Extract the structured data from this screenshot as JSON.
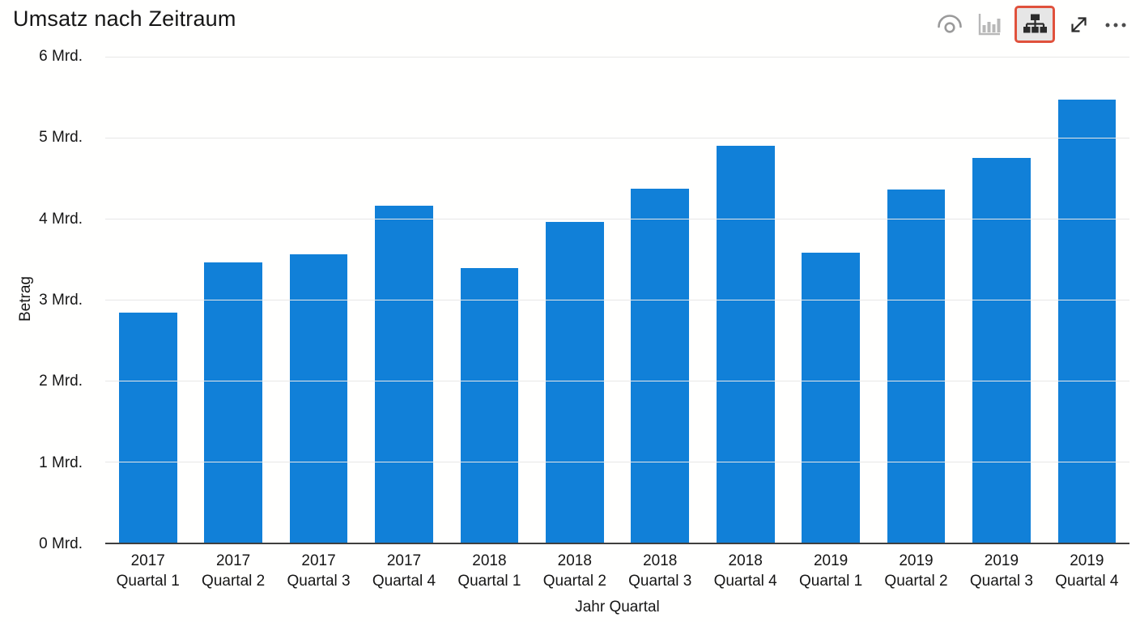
{
  "header": {
    "title": "Umsatz nach Zeitraum",
    "toolbar": {
      "icons": [
        {
          "name": "eye-icon",
          "active": false
        },
        {
          "name": "bar-chart-icon",
          "active": false,
          "disabled": true
        },
        {
          "name": "hierarchy-expand-icon",
          "active": true,
          "highlighted": true
        },
        {
          "name": "focus-mode-icon",
          "active": false
        },
        {
          "name": "more-options-icon",
          "active": false
        }
      ]
    }
  },
  "colors": {
    "bar": "#1180d8",
    "highlight_border": "#e0513c",
    "gridline": "#e7e7e7",
    "axis_line": "#3f3f3f",
    "text": "#1a1a1a",
    "icon_gray": "#9a9a9a",
    "icon_disabled": "#b8b8b8",
    "icon_dark": "#2b2b2b"
  },
  "chart_data": {
    "type": "bar",
    "title": "Umsatz nach Zeitraum",
    "xlabel": "Jahr Quartal",
    "ylabel": "Betrag",
    "unit": "Mrd.",
    "ylim": [
      0,
      6
    ],
    "grid": true,
    "legend": false,
    "y_tick_labels": [
      "0 Mrd.",
      "1 Mrd.",
      "2 Mrd.",
      "3 Mrd.",
      "4 Mrd.",
      "5 Mrd.",
      "6 Mrd."
    ],
    "categories": [
      {
        "year": "2017",
        "quarter": "Quartal 1"
      },
      {
        "year": "2017",
        "quarter": "Quartal 2"
      },
      {
        "year": "2017",
        "quarter": "Quartal 3"
      },
      {
        "year": "2017",
        "quarter": "Quartal 4"
      },
      {
        "year": "2018",
        "quarter": "Quartal 1"
      },
      {
        "year": "2018",
        "quarter": "Quartal 2"
      },
      {
        "year": "2018",
        "quarter": "Quartal 3"
      },
      {
        "year": "2018",
        "quarter": "Quartal 4"
      },
      {
        "year": "2019",
        "quarter": "Quartal 1"
      },
      {
        "year": "2019",
        "quarter": "Quartal 2"
      },
      {
        "year": "2019",
        "quarter": "Quartal 3"
      },
      {
        "year": "2019",
        "quarter": "Quartal 4"
      }
    ],
    "values": [
      2.84,
      3.46,
      3.56,
      4.16,
      3.39,
      3.96,
      4.37,
      4.9,
      3.58,
      4.36,
      4.75,
      5.47
    ]
  }
}
